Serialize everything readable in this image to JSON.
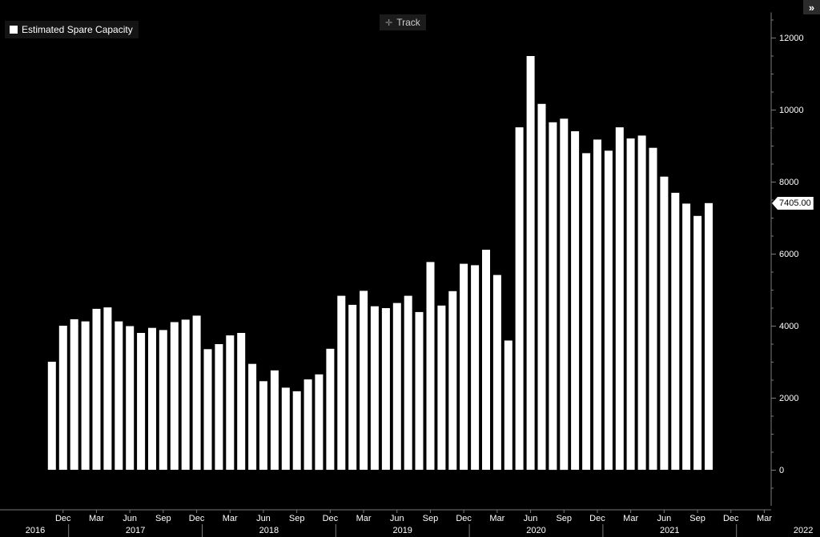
{
  "legend": {
    "label": "Estimated Spare Capacity"
  },
  "toolbar": {
    "track_label": "Track",
    "track_icon": "crosshair-icon",
    "expand_label": "»"
  },
  "last_value_label": "7405.00",
  "colors": {
    "background": "#000000",
    "bars": "#ffffff",
    "axis": "#7a7a7a",
    "text": "#ffffff"
  },
  "chart_data": {
    "type": "bar",
    "series": [
      {
        "name": "Estimated Spare Capacity",
        "x": [
          "2016-11",
          "2016-12",
          "2017-01",
          "2017-02",
          "2017-03",
          "2017-04",
          "2017-05",
          "2017-06",
          "2017-07",
          "2017-08",
          "2017-09",
          "2017-10",
          "2017-11",
          "2017-12",
          "2018-01",
          "2018-02",
          "2018-03",
          "2018-04",
          "2018-05",
          "2018-06",
          "2018-07",
          "2018-08",
          "2018-09",
          "2018-10",
          "2018-11",
          "2018-12",
          "2019-01",
          "2019-02",
          "2019-03",
          "2019-04",
          "2019-05",
          "2019-06",
          "2019-07",
          "2019-08",
          "2019-09",
          "2019-10",
          "2019-11",
          "2019-12",
          "2020-01",
          "2020-02",
          "2020-03",
          "2020-04",
          "2020-05",
          "2020-06",
          "2020-07",
          "2020-08",
          "2020-09",
          "2020-10",
          "2020-11",
          "2020-12",
          "2021-01",
          "2021-02",
          "2021-03",
          "2021-04",
          "2021-05",
          "2021-06",
          "2021-07",
          "2021-08",
          "2021-09",
          "2021-10",
          "2021-11"
        ],
        "values": [
          3000,
          4000,
          4180,
          4120,
          4470,
          4510,
          4120,
          3990,
          3800,
          3940,
          3880,
          4100,
          4170,
          4280,
          3350,
          3490,
          3730,
          3800,
          2940,
          2460,
          2760,
          2280,
          2180,
          2510,
          2650,
          3360,
          4830,
          4580,
          4970,
          4540,
          4490,
          4630,
          4830,
          4380,
          5770,
          4560,
          4960,
          5720,
          5680,
          6110,
          5410,
          3590,
          9510,
          11490,
          10160,
          9650,
          9750,
          9400,
          8790,
          9170,
          8860,
          9510,
          9200,
          9280,
          8940,
          8140,
          7690,
          7390,
          7050,
          7405,
          null
        ],
        "last_value": 7405.0
      }
    ],
    "x_ticks": {
      "months": [
        "Dec",
        "Mar",
        "Jun",
        "Sep",
        "Dec",
        "Mar",
        "Jun",
        "Sep",
        "Dec",
        "Mar",
        "Jun",
        "Sep",
        "Dec",
        "Mar",
        "Jun",
        "Sep",
        "Dec",
        "Mar",
        "Jun",
        "Sep",
        "Dec",
        "Mar"
      ],
      "years": [
        "2016",
        "2017",
        "2018",
        "2019",
        "2020",
        "2021",
        "2022"
      ]
    },
    "y_ticks": [
      "12000",
      "10000",
      "8000",
      "6000",
      "4000",
      "2000",
      "0"
    ],
    "ylim": [
      -1000,
      12700
    ],
    "xlim": [
      "2016-10",
      "2022-04"
    ],
    "y_axis_side": "right",
    "grid": false,
    "legend_position": "top-left"
  }
}
